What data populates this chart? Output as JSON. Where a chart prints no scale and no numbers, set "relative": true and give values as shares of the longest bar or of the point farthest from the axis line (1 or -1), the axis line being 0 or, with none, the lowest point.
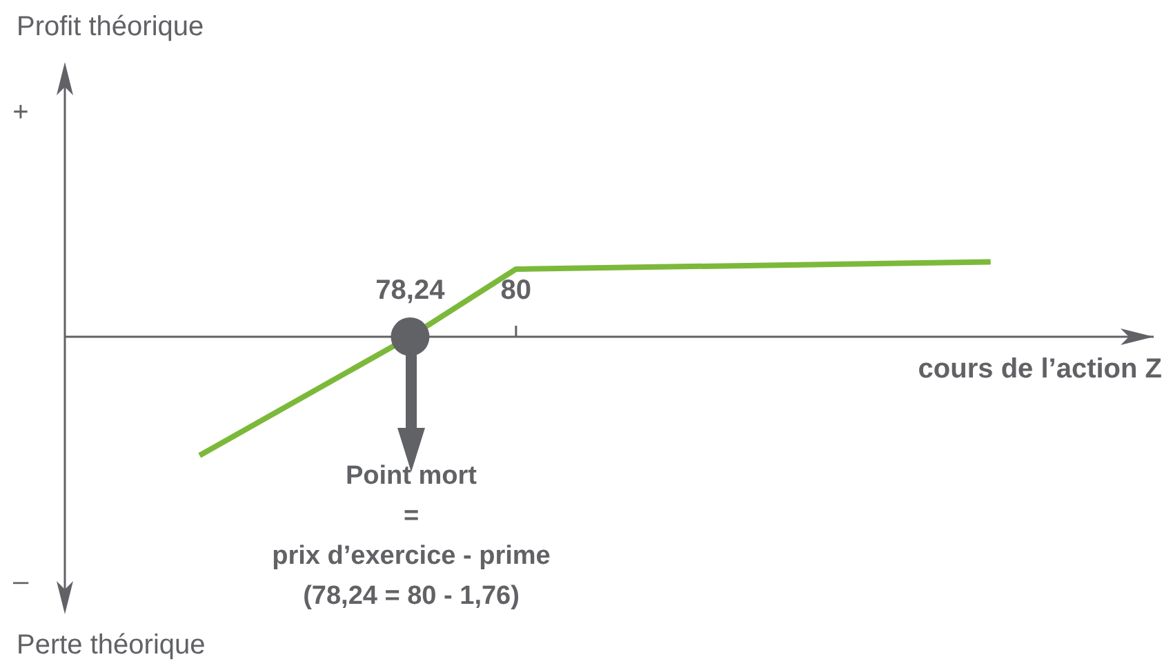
{
  "chart_data": {
    "type": "line",
    "xlabel": "cours de l’action Z",
    "x": [
      74.74,
      78.24,
      80,
      87.89
    ],
    "series": [
      {
        "color": "#7cb93a",
        "values": [
          -1,
          0,
          0.57,
          0.63
        ]
      },
      {
        "type": "scatter",
        "color": "#616265",
        "x": [
          78.24
        ],
        "values": [
          0
        ],
        "marker": "circle"
      }
    ],
    "relative": true,
    "xlim": [
      72.5,
      90.6
    ],
    "xticks": [
      {
        "value": 78.24,
        "label": "78,24"
      },
      {
        "value": 80,
        "label": "80"
      }
    ],
    "annotations": [
      "Profit théorique",
      "+",
      "–",
      "Perte théorique",
      "Point mort\n=\nprix d’exercice - prime\n(78,24 = 80 - 1,76)"
    ],
    "grid": false,
    "legend": false,
    "marker": "none"
  }
}
